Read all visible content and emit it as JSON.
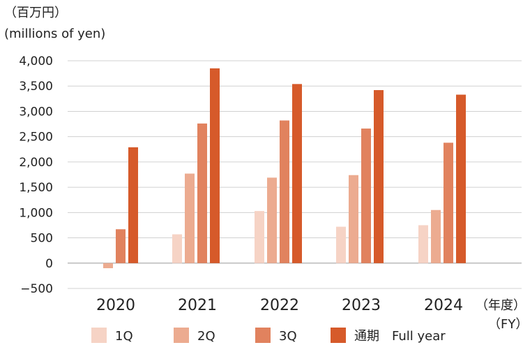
{
  "chart_data": {
    "type": "bar",
    "unit_ja": "（百万円）",
    "unit_en": "(millions of yen)",
    "fy_label_ja": "（年度）",
    "fy_label_en": "（FY）",
    "categories": [
      "2020",
      "2021",
      "2022",
      "2023",
      "2024"
    ],
    "series": [
      {
        "name": "1Q",
        "color": "#f6d3c5",
        "values": [
          0,
          570,
          1030,
          720,
          750
        ]
      },
      {
        "name": "2Q",
        "color": "#ecab90",
        "values": [
          -100,
          1770,
          1690,
          1740,
          1050
        ]
      },
      {
        "name": "3Q",
        "color": "#e1825e",
        "values": [
          670,
          2760,
          2820,
          2660,
          2380
        ]
      },
      {
        "name": "通期　Full year",
        "color": "#d65a2a",
        "values": [
          2290,
          3850,
          3540,
          3420,
          3330
        ]
      }
    ],
    "y_ticks": [
      4000,
      3500,
      3000,
      2500,
      2000,
      1500,
      1000,
      500,
      0,
      -500
    ],
    "y_tick_labels": [
      "4,000",
      "3,500",
      "3,000",
      "2,500",
      "2,000",
      "1,500",
      "1,000",
      "500",
      "0",
      "−500"
    ],
    "ylim": [
      -500,
      4000
    ],
    "grid": true,
    "legend_position": "bottom"
  }
}
